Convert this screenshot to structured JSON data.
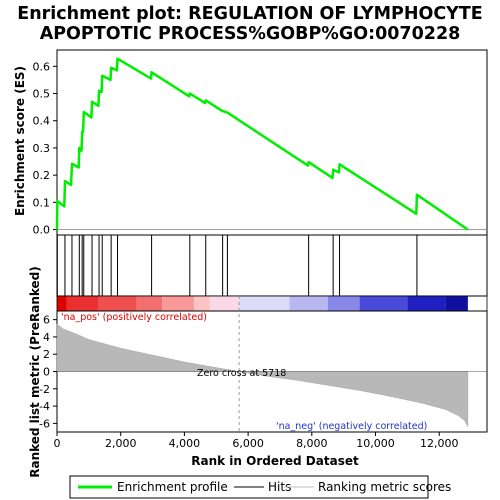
{
  "chart_data": {
    "type": "line",
    "title_line1": "Enrichment plot: REGULATION OF LYMPHOCYTE",
    "title_line2": "APOPTOTIC PROCESS%GOBP%GO:0070228",
    "xlabel": "Rank in Ordered Dataset",
    "ylabel_top": "Enrichment score (ES)",
    "ylabel_bottom": "Ranked list metric (PreRanked)",
    "xlim": [
      0,
      13500
    ],
    "x_ticks": [
      0,
      2000,
      4000,
      6000,
      8000,
      10000,
      12000
    ],
    "x_tick_labels": [
      "0",
      "2,000",
      "4,000",
      "6,000",
      "8,000",
      "10,000",
      "12,000"
    ],
    "es_ylim": [
      -0.02,
      0.66
    ],
    "es_ticks": [
      0.0,
      0.1,
      0.2,
      0.3,
      0.4,
      0.5,
      0.6
    ],
    "es_tick_labels": [
      "0.0",
      "0.1",
      "0.2",
      "0.3",
      "0.4",
      "0.5",
      "0.6"
    ],
    "metric_ylim": [
      -7,
      7
    ],
    "metric_ticks": [
      -6,
      -4,
      -2,
      0,
      2,
      4,
      6
    ],
    "metric_tick_labels": [
      "-6",
      "-4",
      "-2",
      "0",
      "2",
      "4",
      "6"
    ],
    "total_genes": 12900,
    "series": [
      {
        "name": "Enrichment profile",
        "color": "#00ee00",
        "points": [
          [
            0,
            0.0
          ],
          [
            10,
            0.105
          ],
          [
            230,
            0.085
          ],
          [
            250,
            0.178
          ],
          [
            440,
            0.164
          ],
          [
            470,
            0.242
          ],
          [
            680,
            0.228
          ],
          [
            700,
            0.3
          ],
          [
            770,
            0.29
          ],
          [
            790,
            0.36
          ],
          [
            820,
            0.36
          ],
          [
            840,
            0.432
          ],
          [
            1080,
            0.412
          ],
          [
            1100,
            0.47
          ],
          [
            1300,
            0.455
          ],
          [
            1320,
            0.51
          ],
          [
            1400,
            0.505
          ],
          [
            1420,
            0.565
          ],
          [
            1680,
            0.55
          ],
          [
            1700,
            0.595
          ],
          [
            1880,
            0.585
          ],
          [
            1900,
            0.628
          ],
          [
            2950,
            0.555
          ],
          [
            2970,
            0.578
          ],
          [
            4150,
            0.49
          ],
          [
            4170,
            0.5
          ],
          [
            4650,
            0.465
          ],
          [
            4670,
            0.475
          ],
          [
            5200,
            0.435
          ],
          [
            5220,
            0.435
          ],
          [
            5350,
            0.43
          ],
          [
            7880,
            0.235
          ],
          [
            7900,
            0.248
          ],
          [
            8650,
            0.19
          ],
          [
            8670,
            0.22
          ],
          [
            8850,
            0.21
          ],
          [
            8870,
            0.24
          ],
          [
            11280,
            0.058
          ],
          [
            11300,
            0.128
          ],
          [
            12900,
            0.0
          ]
        ]
      }
    ],
    "hits": [
      10,
      250,
      470,
      700,
      790,
      840,
      1100,
      1320,
      1420,
      1700,
      1900,
      2970,
      4170,
      4670,
      5200,
      5350,
      7900,
      8670,
      8870,
      11300
    ],
    "metric_curve": [
      [
        0,
        5.5
      ],
      [
        200,
        4.9
      ],
      [
        500,
        4.5
      ],
      [
        1000,
        3.7
      ],
      [
        2000,
        2.7
      ],
      [
        3000,
        1.9
      ],
      [
        4000,
        1.1
      ],
      [
        5000,
        0.45
      ],
      [
        5718,
        0.0
      ],
      [
        6500,
        -0.5
      ],
      [
        7500,
        -1.0
      ],
      [
        8500,
        -1.6
      ],
      [
        9500,
        -2.2
      ],
      [
        10500,
        -2.9
      ],
      [
        11500,
        -3.7
      ],
      [
        12200,
        -4.4
      ],
      [
        12600,
        -5.1
      ],
      [
        12800,
        -5.7
      ],
      [
        12900,
        -6.4
      ]
    ],
    "color_bar": [
      {
        "start": 0,
        "end": 300,
        "color": "#e00000"
      },
      {
        "start": 300,
        "end": 1300,
        "color": "#e83030"
      },
      {
        "start": 1300,
        "end": 2500,
        "color": "#ee5050"
      },
      {
        "start": 2500,
        "end": 3300,
        "color": "#f47070"
      },
      {
        "start": 3300,
        "end": 4300,
        "color": "#f89898"
      },
      {
        "start": 4300,
        "end": 4800,
        "color": "#fbc4c4"
      },
      {
        "start": 4800,
        "end": 5718,
        "color": "#fbd8e8"
      },
      {
        "start": 5718,
        "end": 7300,
        "color": "#dcdcf8"
      },
      {
        "start": 7300,
        "end": 8500,
        "color": "#b8b8f0"
      },
      {
        "start": 8500,
        "end": 9500,
        "color": "#8888e8"
      },
      {
        "start": 9500,
        "end": 11000,
        "color": "#4a4ad8"
      },
      {
        "start": 11000,
        "end": 12200,
        "color": "#2020c0"
      },
      {
        "start": 12200,
        "end": 12900,
        "color": "#1010a0"
      }
    ],
    "annotations": {
      "pos_label": "'na_pos' (positively correlated)",
      "neg_label": "'na_neg' (negatively correlated)",
      "zero_cross": "Zero cross at 5718",
      "zero_cross_rank": 5718
    },
    "legend": [
      {
        "label": "Enrichment profile",
        "color": "#00ee00",
        "style": "thick-line"
      },
      {
        "label": "Hits",
        "color": "#000000",
        "style": "line"
      },
      {
        "label": "Ranking metric scores",
        "color": "#c0c0c0",
        "style": "line"
      }
    ]
  }
}
